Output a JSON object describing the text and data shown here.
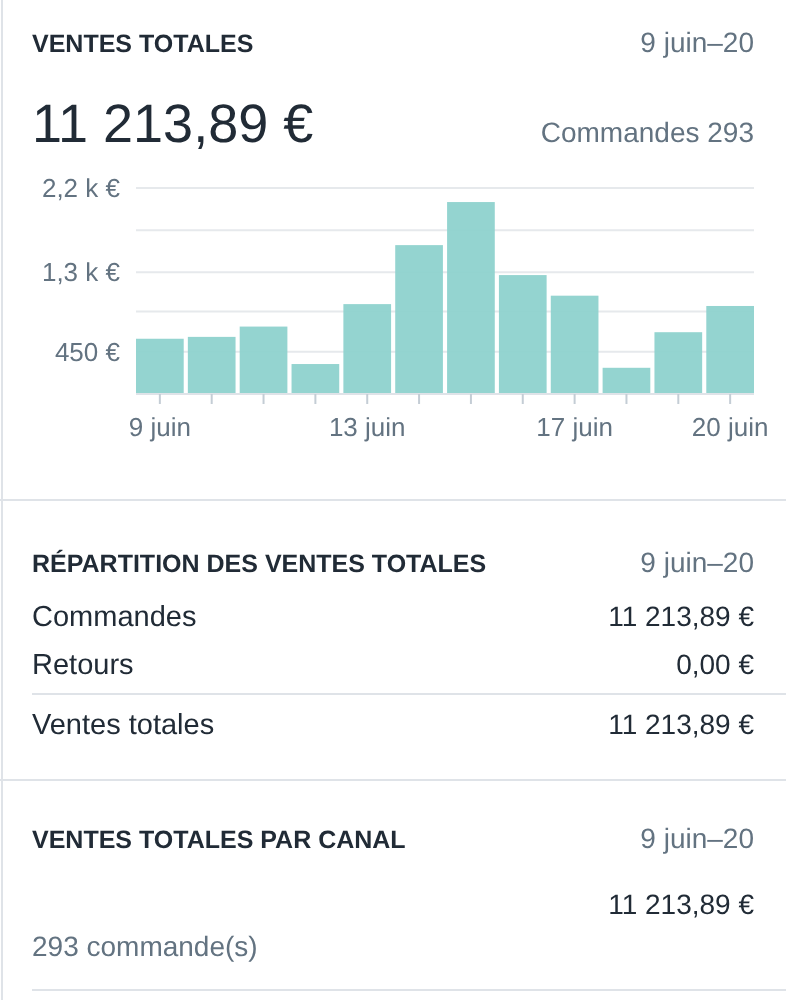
{
  "chart_data": {
    "type": "bar",
    "title": "VENTES TOTALES",
    "subtitle": "9 juin–20",
    "categories": [
      "9 juin",
      null,
      null,
      null,
      "13 juin",
      null,
      null,
      null,
      "17 juin",
      null,
      null,
      "20 juin"
    ],
    "values": [
      590,
      610,
      720,
      320,
      960,
      1590,
      2050,
      1270,
      1050,
      280,
      660,
      940
    ],
    "color": "#8ed2cd",
    "ylim": [
      0,
      2200
    ],
    "yticks": [
      {
        "value": 0,
        "label": null
      },
      {
        "value": 450,
        "label": "450 €"
      },
      {
        "value": 880,
        "label": null
      },
      {
        "value": 1300,
        "label": "1,3 k €"
      },
      {
        "value": 1750,
        "label": null
      },
      {
        "value": 2200,
        "label": "2,2 k €"
      }
    ],
    "grid": "y",
    "annotations": [
      "11 213,89 €",
      "Commandes 293",
      "RÉPARTITION DES VENTES TOTALES",
      "9 juin–20",
      "Commandes",
      "11 213,89 €",
      "Retours",
      "0,00 €",
      "Ventes totales",
      "11 213,89 €",
      "VENTES TOTALES PAR CANAL",
      "9 juin–20",
      "11 213,89 €",
      "293 commande(s)"
    ]
  }
}
